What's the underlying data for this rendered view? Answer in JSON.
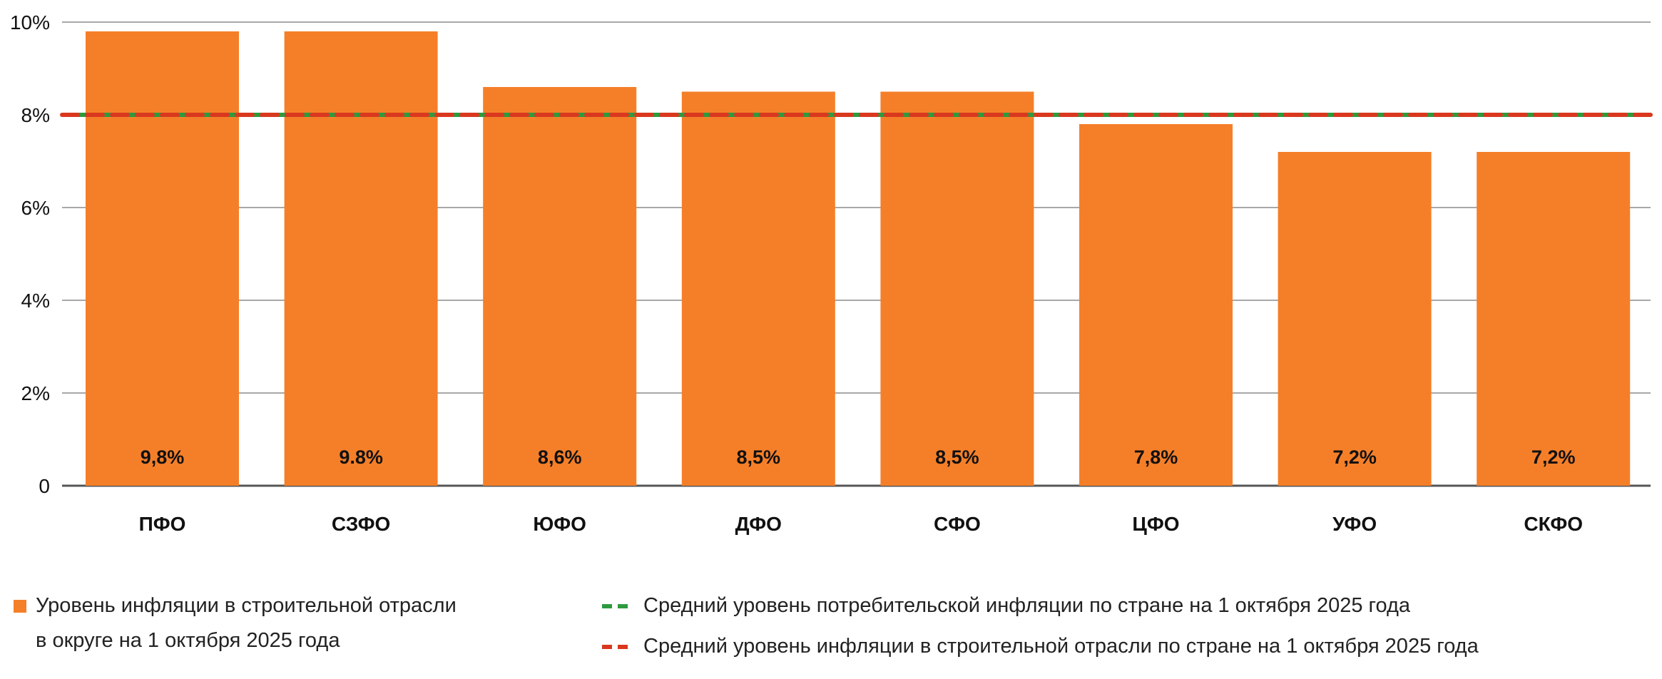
{
  "chart_data": {
    "type": "bar",
    "categories": [
      "ПФО",
      "СЗФО",
      "ЮФО",
      "ДФО",
      "СФО",
      "ЦФО",
      "УФО",
      "СКФО"
    ],
    "values": [
      9.8,
      9.8,
      8.6,
      8.5,
      8.5,
      7.8,
      7.2,
      7.2
    ],
    "data_labels": [
      "9,8%",
      "9.8%",
      "8,6%",
      "8,5%",
      "8,5%",
      "7,8%",
      "7,2%",
      "7,2%"
    ],
    "ylim": [
      0,
      10
    ],
    "yticks": [
      0,
      2,
      4,
      6,
      8,
      10
    ],
    "ytick_labels": [
      "0",
      "2%",
      "4%",
      "6%",
      "8%",
      "10%"
    ],
    "grid": true,
    "legend_position": "bottom",
    "reference_lines": [
      {
        "name": "Средний уровень потребительской инфляции по стране на 1 октября 2025 года",
        "value": 8.0,
        "color": "#2e9a3e",
        "style": "dashed"
      },
      {
        "name": "Средний уровень инфляции в строительной отрасли по стране на 1 октября 2025 года",
        "value": 8.0,
        "color": "#d9381e",
        "style": "dashed"
      }
    ],
    "series": [
      {
        "name": "Уровень инфляции в строительной отрасли в округе на 1 октября 2025 года",
        "color": "#f57f29"
      }
    ]
  },
  "legend": {
    "bar_line1": "Уровень инфляции в строительной отрасли",
    "bar_line2": "в округе на 1 октября 2025 года",
    "green": "Средний уровень потребительской инфляции по стране на 1 октября 2025 года",
    "red": "Средний уровень инфляции в строительной отрасли по стране на 1 октября 2025 года"
  }
}
